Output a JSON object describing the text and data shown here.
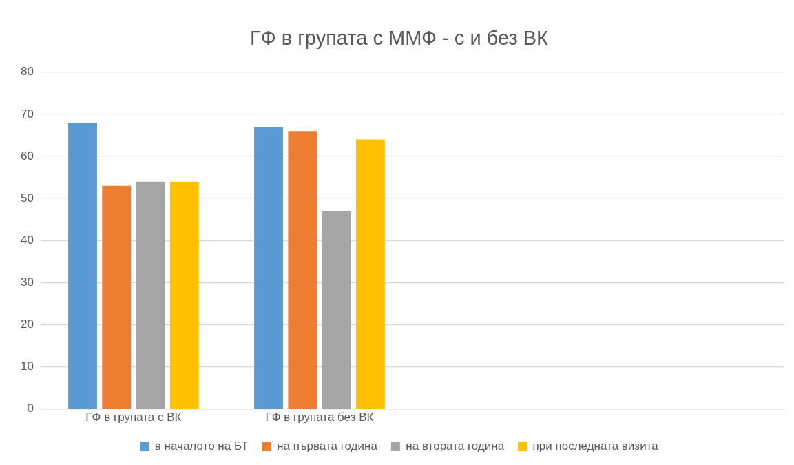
{
  "chart_data": {
    "type": "bar",
    "title": "ГФ в групата с ММФ - с и без ВК",
    "categories": [
      "ГФ в групата с ВК",
      "ГФ в групата без ВК",
      null,
      null
    ],
    "series": [
      {
        "name": "в началото на БТ",
        "color": "#5b9bd5",
        "values": [
          68,
          67,
          null,
          null
        ]
      },
      {
        "name": "на първата година",
        "color": "#ed7d31",
        "values": [
          53,
          66,
          null,
          null
        ]
      },
      {
        "name": "на втората година",
        "color": "#a5a5a5",
        "values": [
          54,
          47,
          null,
          null
        ]
      },
      {
        "name": "при последната визита",
        "color": "#ffc000",
        "values": [
          54,
          64,
          null,
          null
        ]
      }
    ],
    "ylim": [
      0,
      80
    ],
    "yticks": [
      0,
      10,
      20,
      30,
      40,
      50,
      60,
      70,
      80
    ],
    "grid": "y",
    "legend": "bottom"
  }
}
